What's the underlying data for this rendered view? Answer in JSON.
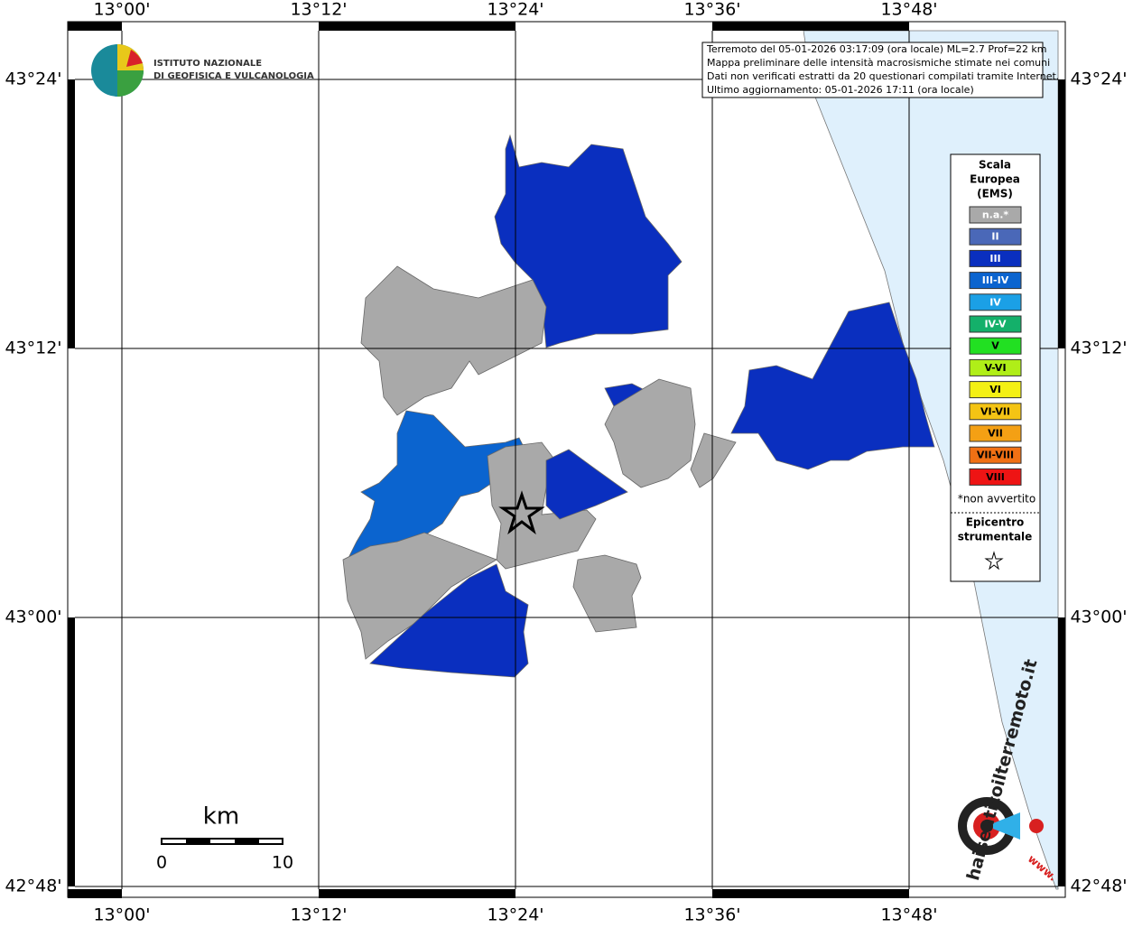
{
  "logo": {
    "line1": "ISTITUTO NAZIONALE",
    "line2": "DI GEOFISICA E VULCANOLOGIA"
  },
  "info": [
    "Terremoto del 05-01-2026 03:17:09 (ora locale) ML=2.7 Prof=22 km",
    "Mappa preliminare delle intensità macrosismiche stimate nei comuni",
    "Dati non verificati estratti da 20 questionari compilati tramite Internet.",
    "Ultimo aggiornamento: 05-01-2026 17:11 (ora locale)"
  ],
  "lon_labels": [
    "13°00'",
    "13°12'",
    "13°24'",
    "13°36'",
    "13°48'"
  ],
  "lat_labels": [
    "43°24'",
    "43°12'",
    "43°00'",
    "42°48'"
  ],
  "legend": {
    "title": [
      "Scala",
      "Europea",
      "(EMS)"
    ],
    "items": [
      {
        "label": "n.a.*",
        "color": "#a9a9a9"
      },
      {
        "label": "II",
        "color": "#4a68b8"
      },
      {
        "label": "III",
        "color": "#0a2fbf"
      },
      {
        "label": "III-IV",
        "color": "#0b64cf"
      },
      {
        "label": "IV",
        "color": "#1ba0e6"
      },
      {
        "label": "IV-V",
        "color": "#14b06a"
      },
      {
        "label": "V",
        "color": "#22e022"
      },
      {
        "label": "V-VI",
        "color": "#b0ee18"
      },
      {
        "label": "VI",
        "color": "#f4f014"
      },
      {
        "label": "VI-VII",
        "color": "#f4c414"
      },
      {
        "label": "VII",
        "color": "#f4a014"
      },
      {
        "label": "VII-VIII",
        "color": "#f07014"
      },
      {
        "label": "VIII",
        "color": "#ee1414"
      }
    ],
    "note": "*non avvertito",
    "epicenter": [
      "Epicentro",
      "strumentale"
    ]
  },
  "scale": {
    "unit": "km",
    "start": "0",
    "end": "10"
  },
  "badge": {
    "site": "haisentitoilterremoto.it",
    "www": "www."
  }
}
